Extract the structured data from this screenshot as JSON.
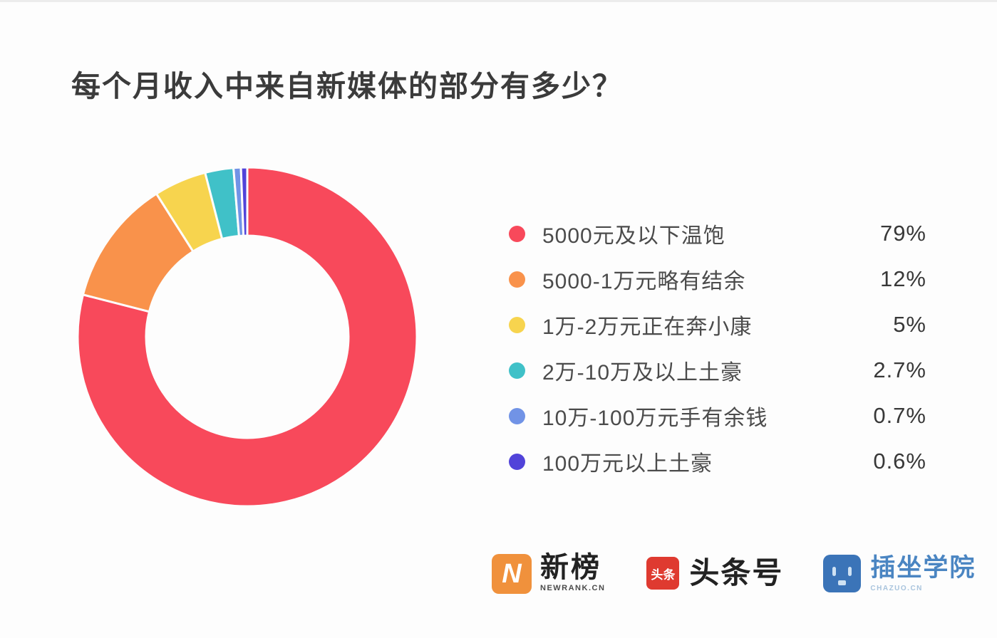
{
  "title": "每个月收入中来自新媒体的部分有多少？",
  "chart_data": {
    "type": "pie",
    "donut": true,
    "title": "每个月收入中来自新媒体的部分有多少？",
    "start_angle_deg": -90,
    "direction": "clockwise",
    "legend_position": "right",
    "categories": [
      "5000元及以下温饱",
      "5000-1万元略有结余",
      "1万-2万元正在奔小康",
      "2万-10万及以上土豪",
      "10万-100万元手有余钱",
      "100万元以上土豪"
    ],
    "values": [
      79,
      12,
      5,
      2.7,
      0.7,
      0.6
    ],
    "value_labels": [
      "79%",
      "12%",
      "5%",
      "2.7%",
      "0.7%",
      "0.6%"
    ],
    "colors": [
      "#F8495B",
      "#F9924B",
      "#F7D44E",
      "#40C1C8",
      "#7193E6",
      "#5143D9"
    ],
    "geometry": {
      "outer_radius": 238,
      "inner_radius": 142,
      "slice_gap_stroke": "#fdfdfd"
    }
  },
  "footer": {
    "newrank": {
      "icon_letter": "N",
      "icon_color": "#F0913C",
      "name": "新榜",
      "site": "NEWRANK.CN"
    },
    "toutiao": {
      "icon_text": "头条",
      "icon_color": "#DF3A30",
      "name": "头条号"
    },
    "chazuo": {
      "icon_color": "#3B74B8",
      "name": "插坐学院",
      "name_color": "#4A85C2",
      "site": "CHAZUO.CN",
      "site_color": "#A9C4DD"
    }
  }
}
